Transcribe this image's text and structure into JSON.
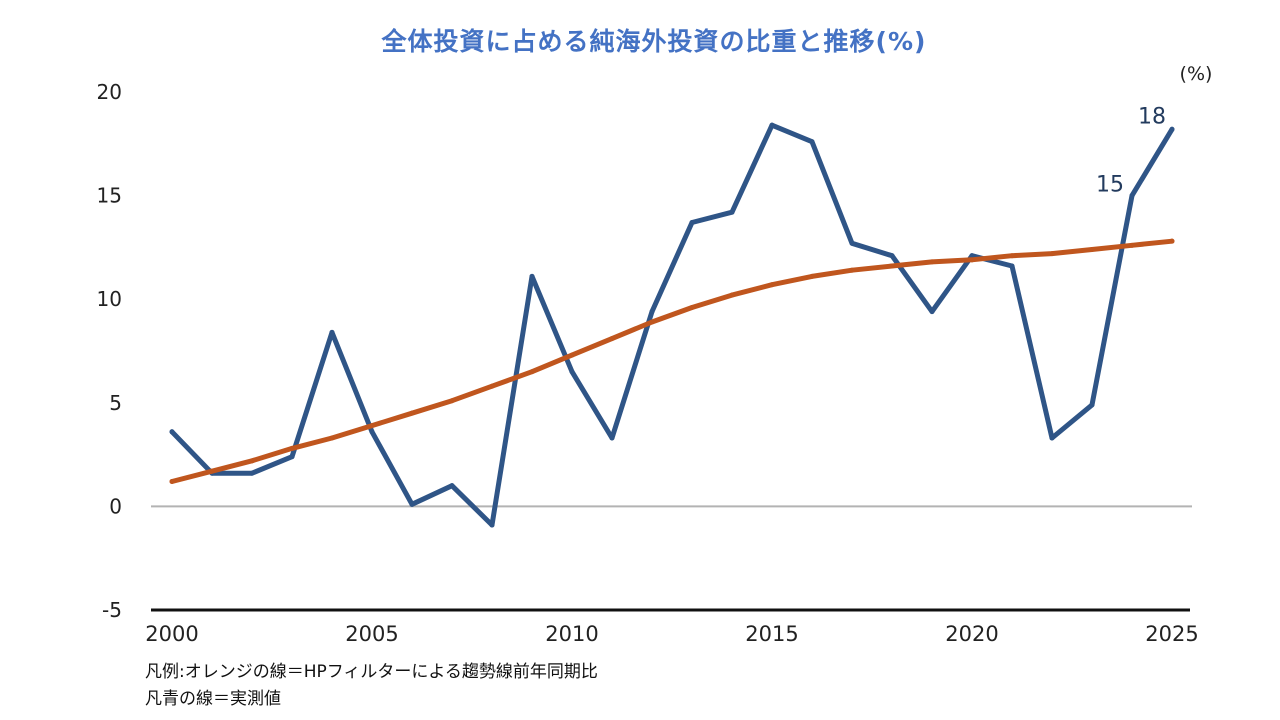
{
  "chart_data": {
    "type": "line",
    "title": "全体投資に占める純海外投資の比重と推移(%)",
    "unit_label": "(%)",
    "xlabel": "",
    "ylabel": "",
    "xlim": [
      2000,
      2025
    ],
    "ylim": [
      -5,
      20
    ],
    "x_ticks": [
      "2000",
      "2005",
      "2010",
      "2015",
      "2020",
      "2025"
    ],
    "y_ticks": [
      "20",
      "15",
      "10",
      "5",
      "0",
      "-5"
    ],
    "x": [
      2000,
      2001,
      2002,
      2003,
      2004,
      2005,
      2006,
      2007,
      2008,
      2009,
      2010,
      2011,
      2012,
      2013,
      2014,
      2015,
      2016,
      2017,
      2018,
      2019,
      2020,
      2021,
      2022,
      2023,
      2024,
      2025
    ],
    "series": [
      {
        "name": "実測値",
        "color": "#2F5587",
        "values": [
          3.6,
          1.6,
          1.6,
          2.4,
          8.4,
          3.6,
          0.1,
          1.0,
          -0.9,
          11.1,
          6.5,
          3.3,
          9.4,
          13.7,
          14.2,
          18.4,
          17.6,
          12.7,
          12.1,
          9.4,
          12.1,
          11.6,
          3.3,
          4.9,
          15.0,
          18.2
        ]
      },
      {
        "name": "HPフィルターによる趨勢線",
        "color": "#C0561E",
        "values": [
          1.2,
          1.7,
          2.2,
          2.8,
          3.3,
          3.9,
          4.5,
          5.1,
          5.8,
          6.5,
          7.3,
          8.1,
          8.9,
          9.6,
          10.2,
          10.7,
          11.1,
          11.4,
          11.6,
          11.8,
          11.9,
          12.1,
          12.2,
          12.4,
          12.6,
          12.8
        ]
      }
    ],
    "annotations": [
      {
        "x": 2024,
        "text": "15"
      },
      {
        "x": 2025,
        "text": "18"
      }
    ],
    "grid": false,
    "zero_line": true
  },
  "legend": {
    "line1": "凡例:オレンジの線＝HPフィルターによる趨勢線前年同期比",
    "line2": "凡青の線＝実測値"
  }
}
